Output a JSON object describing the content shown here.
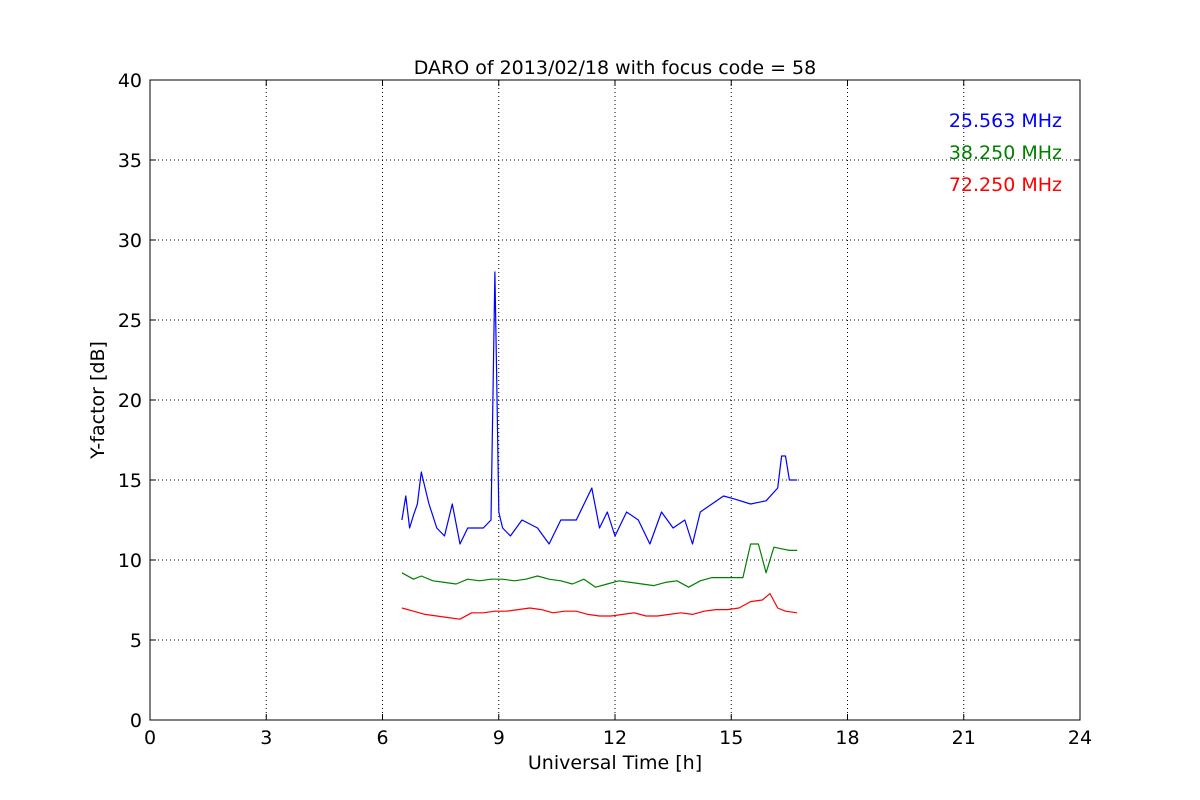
{
  "chart_data": {
    "type": "line",
    "title": "DARO of 2013/02/18 with focus code = 58",
    "xlabel": "Universal Time [h]",
    "ylabel": "Y-factor [dB]",
    "xlim": [
      0,
      24
    ],
    "ylim": [
      0,
      40
    ],
    "x_ticks": [
      0,
      3,
      6,
      9,
      12,
      15,
      18,
      21,
      24
    ],
    "y_ticks": [
      0,
      5,
      10,
      15,
      20,
      25,
      30,
      35,
      40
    ],
    "grid": true,
    "legend_position": "top-right",
    "series": [
      {
        "name": "25.563 MHz",
        "color": "#0000ff",
        "x": [
          6.5,
          6.6,
          6.7,
          6.8,
          6.9,
          7.0,
          7.1,
          7.2,
          7.4,
          7.6,
          7.8,
          8.0,
          8.2,
          8.4,
          8.6,
          8.8,
          8.9,
          8.95,
          9.0,
          9.1,
          9.3,
          9.6,
          10.0,
          10.3,
          10.6,
          11.0,
          11.4,
          11.6,
          11.8,
          12.0,
          12.3,
          12.6,
          12.9,
          13.2,
          13.5,
          13.8,
          14.0,
          14.2,
          14.5,
          14.8,
          15.1,
          15.5,
          15.9,
          16.2,
          16.3,
          16.4,
          16.5,
          16.7
        ],
        "y": [
          12.5,
          14.0,
          12.0,
          12.8,
          13.5,
          15.5,
          14.5,
          13.5,
          12.0,
          11.5,
          13.5,
          11.0,
          12.0,
          12.0,
          12.0,
          12.5,
          28.0,
          21.0,
          13.0,
          12.0,
          11.5,
          12.5,
          12.0,
          11.0,
          12.5,
          12.5,
          14.5,
          12.0,
          13.0,
          11.5,
          13.0,
          12.5,
          11.0,
          13.0,
          12.0,
          12.5,
          11.0,
          13.0,
          13.5,
          14.0,
          13.8,
          13.5,
          13.7,
          14.5,
          16.5,
          16.5,
          15.0,
          15.0
        ]
      },
      {
        "name": "38.250 MHz",
        "color": "#008000",
        "x": [
          6.5,
          6.8,
          7.0,
          7.3,
          7.6,
          7.9,
          8.2,
          8.5,
          8.8,
          9.1,
          9.4,
          9.7,
          10.0,
          10.3,
          10.6,
          10.9,
          11.2,
          11.5,
          11.8,
          12.1,
          12.4,
          12.7,
          13.0,
          13.3,
          13.6,
          13.9,
          14.2,
          14.5,
          14.8,
          15.1,
          15.3,
          15.5,
          15.7,
          15.9,
          16.1,
          16.3,
          16.5,
          16.7
        ],
        "y": [
          9.2,
          8.8,
          9.0,
          8.7,
          8.6,
          8.5,
          8.8,
          8.7,
          8.8,
          8.8,
          8.7,
          8.8,
          9.0,
          8.8,
          8.7,
          8.5,
          8.8,
          8.3,
          8.5,
          8.7,
          8.6,
          8.5,
          8.4,
          8.6,
          8.7,
          8.3,
          8.7,
          8.9,
          8.9,
          8.9,
          8.9,
          11.0,
          11.0,
          9.2,
          10.8,
          10.7,
          10.6,
          10.6
        ]
      },
      {
        "name": "72.250 MHz",
        "color": "#ff0000",
        "x": [
          6.5,
          6.8,
          7.1,
          7.4,
          7.7,
          8.0,
          8.3,
          8.6,
          8.9,
          9.2,
          9.5,
          9.8,
          10.1,
          10.4,
          10.7,
          11.0,
          11.3,
          11.6,
          11.9,
          12.2,
          12.5,
          12.8,
          13.1,
          13.4,
          13.7,
          14.0,
          14.3,
          14.6,
          14.9,
          15.2,
          15.5,
          15.8,
          16.0,
          16.2,
          16.4,
          16.7
        ],
        "y": [
          7.0,
          6.8,
          6.6,
          6.5,
          6.4,
          6.3,
          6.7,
          6.7,
          6.8,
          6.8,
          6.9,
          7.0,
          6.9,
          6.7,
          6.8,
          6.8,
          6.6,
          6.5,
          6.5,
          6.6,
          6.7,
          6.5,
          6.5,
          6.6,
          6.7,
          6.6,
          6.8,
          6.9,
          6.9,
          7.0,
          7.4,
          7.5,
          7.9,
          7.0,
          6.8,
          6.7
        ]
      }
    ]
  }
}
